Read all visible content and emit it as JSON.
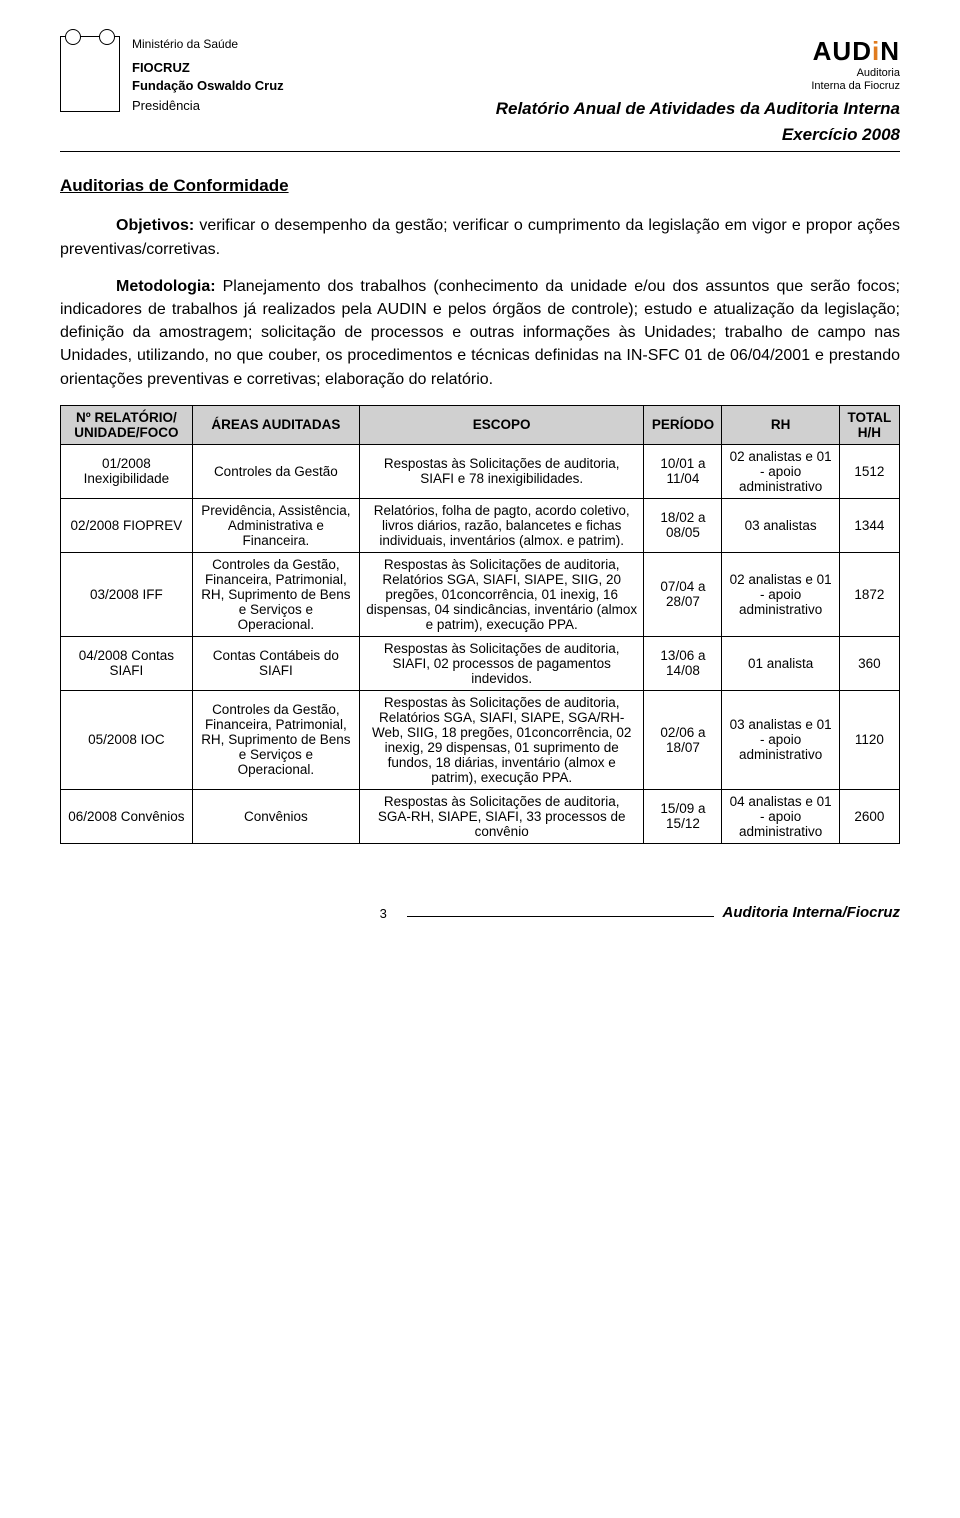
{
  "header": {
    "ministry": "Ministério da Saúde",
    "fiocruz": "FIOCRUZ",
    "fundacao": "Fundação Oswaldo Cruz",
    "presidencia": "Presidência",
    "audin_main": "AUD",
    "audin_i": "i",
    "audin_n": "N",
    "audin_sub1": "Auditoria",
    "audin_sub2": "Interna da Fiocruz",
    "report_title_1": "Relatório Anual de Atividades da Auditoria Interna",
    "report_title_2": "Exercício 2008"
  },
  "section": {
    "title": "Auditorias de Conformidade",
    "objetivos_label": "Objetivos:",
    "objetivos_text": " verificar o desempenho da gestão; verificar o cumprimento da legislação em vigor e propor ações preventivas/corretivas.",
    "metodologia_label": "Metodologia:",
    "metodologia_text": " Planejamento dos trabalhos (conhecimento da unidade e/ou dos assuntos que serão focos; indicadores de trabalhos já realizados pela AUDIN e pelos órgãos de controle); estudo e atualização da legislação; definição da amostragem; solicitação de processos e outras informações às Unidades; trabalho de campo nas Unidades, utilizando, no que couber, os procedimentos e técnicas definidas na IN-SFC 01 de 06/04/2001 e prestando orientações preventivas e corretivas; elaboração do relatório."
  },
  "table": {
    "headers": [
      "Nº RELATÓRIO/ UNIDADE/FOCO",
      "ÁREAS AUDITADAS",
      "ESCOPO",
      "PERÍODO",
      "RH",
      "TOTAL H/H"
    ],
    "rows": [
      {
        "rel": "01/2008 Inexigibilidade",
        "areas": "Controles da Gestão",
        "escopo": "Respostas às Solicitações de auditoria, SIAFI e 78 inexigibilidades.",
        "periodo": "10/01 a 11/04",
        "rh": "02 analistas e 01 - apoio administrativo",
        "total": "1512"
      },
      {
        "rel": "02/2008 FIOPREV",
        "areas": "Previdência, Assistência, Administrativa e Financeira.",
        "escopo": "Relatórios, folha de pagto, acordo coletivo, livros diários, razão, balancetes e fichas individuais, inventários (almox. e patrim).",
        "periodo": "18/02 a 08/05",
        "rh": "03 analistas",
        "total": "1344"
      },
      {
        "rel": "03/2008 IFF",
        "areas": "Controles da Gestão, Financeira, Patrimonial, RH, Suprimento de Bens e Serviços e Operacional.",
        "escopo": "Respostas às Solicitações de auditoria, Relatórios SGA, SIAFI, SIAPE, SIIG, 20 pregões, 01concorrência, 01 inexig, 16 dispensas, 04 sindicâncias, inventário (almox e patrim), execução PPA.",
        "periodo": "07/04 a 28/07",
        "rh": "02 analistas e 01 - apoio administrativo",
        "total": "1872"
      },
      {
        "rel": "04/2008 Contas SIAFI",
        "areas": "Contas Contábeis do SIAFI",
        "escopo": "Respostas às Solicitações de auditoria, SIAFI, 02 processos de pagamentos indevidos.",
        "periodo": "13/06 a 14/08",
        "rh": "01 analista",
        "total": "360"
      },
      {
        "rel": "05/2008 IOC",
        "areas": "Controles da Gestão, Financeira, Patrimonial, RH, Suprimento de Bens e Serviços e Operacional.",
        "escopo": "Respostas às Solicitações de auditoria, Relatórios SGA, SIAFI, SIAPE, SGA/RH-Web, SIIG, 18 pregões, 01concorrência, 02 inexig, 29 dispensas, 01 suprimento de fundos, 18 diárias, inventário (almox e patrim), execução PPA.",
        "periodo": "02/06 a 18/07",
        "rh": "03 analistas e 01 - apoio administrativo",
        "total": "1120"
      },
      {
        "rel": "06/2008 Convênios",
        "areas": "Convênios",
        "escopo": "Respostas às Solicitações de auditoria, SGA-RH, SIAPE, SIAFI, 33 processos de convênio",
        "periodo": "15/09 a 15/12",
        "rh": "04 analistas e 01 - apoio administrativo",
        "total": "2600"
      }
    ]
  },
  "footer": {
    "page": "3",
    "right": "Auditoria Interna/Fiocruz"
  }
}
